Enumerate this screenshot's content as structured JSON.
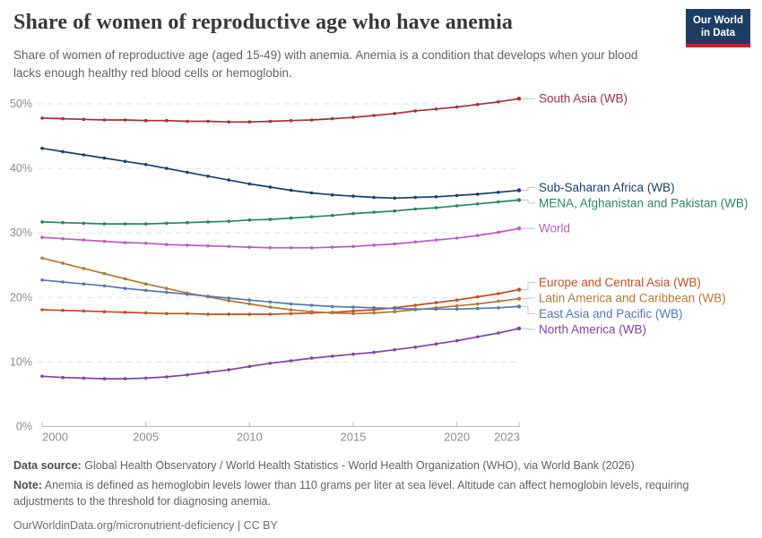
{
  "header": {
    "title": "Share of women of reproductive age who have anemia",
    "subtitle": "Share of women of reproductive age (aged 15-49) with anemia. Anemia is a condition that develops when your blood lacks enough healthy red blood cells or hemoglobin.",
    "logo_line1": "Our World",
    "logo_line2": "in Data",
    "logo_bg_color": "#1d3d63",
    "logo_stripe_color": "#b62b30"
  },
  "chart_data": {
    "type": "line",
    "x": [
      2000,
      2001,
      2002,
      2003,
      2004,
      2005,
      2006,
      2007,
      2008,
      2009,
      2010,
      2011,
      2012,
      2013,
      2014,
      2015,
      2016,
      2017,
      2018,
      2019,
      2020,
      2021,
      2022,
      2023
    ],
    "x_ticks": [
      2000,
      2005,
      2010,
      2015,
      2020,
      2023
    ],
    "y_ticks": [
      0,
      10,
      20,
      30,
      40,
      50
    ],
    "y_unit": "%",
    "ylim": [
      0,
      52
    ],
    "grid": "dashed-horizontal",
    "legend_position": "right-of-line-ends",
    "series": [
      {
        "name": "South Asia (WB)",
        "color": "#a0353b",
        "values": [
          47.8,
          47.7,
          47.6,
          47.5,
          47.5,
          47.4,
          47.4,
          47.3,
          47.3,
          47.2,
          47.2,
          47.3,
          47.4,
          47.5,
          47.7,
          47.9,
          48.2,
          48.5,
          48.9,
          49.2,
          49.5,
          49.9,
          50.3,
          50.8
        ]
      },
      {
        "name": "Sub-Saharan Africa (WB)",
        "color": "#1c3f68",
        "values": [
          43.1,
          42.6,
          42.1,
          41.6,
          41.1,
          40.6,
          40.0,
          39.4,
          38.8,
          38.2,
          37.6,
          37.1,
          36.6,
          36.2,
          35.9,
          35.7,
          35.5,
          35.4,
          35.5,
          35.6,
          35.8,
          36.0,
          36.3,
          36.6
        ]
      },
      {
        "name": "MENA, Afghanistan and Pakistan (WB)",
        "color": "#2c8465",
        "values": [
          31.7,
          31.6,
          31.5,
          31.4,
          31.4,
          31.4,
          31.5,
          31.6,
          31.7,
          31.8,
          32.0,
          32.1,
          32.3,
          32.5,
          32.7,
          33.0,
          33.2,
          33.4,
          33.7,
          33.9,
          34.2,
          34.5,
          34.8,
          35.1
        ]
      },
      {
        "name": "World",
        "color": "#b560bd",
        "values": [
          29.3,
          29.1,
          28.9,
          28.7,
          28.5,
          28.4,
          28.2,
          28.1,
          28.0,
          27.9,
          27.8,
          27.7,
          27.7,
          27.7,
          27.8,
          27.9,
          28.1,
          28.3,
          28.6,
          28.9,
          29.2,
          29.6,
          30.1,
          30.7
        ]
      },
      {
        "name": "Europe and Central Asia (WB)",
        "color": "#c44e27",
        "values": [
          18.1,
          18.0,
          17.9,
          17.8,
          17.7,
          17.6,
          17.5,
          17.5,
          17.4,
          17.4,
          17.4,
          17.4,
          17.5,
          17.6,
          17.7,
          17.9,
          18.1,
          18.4,
          18.8,
          19.2,
          19.6,
          20.1,
          20.6,
          21.2
        ]
      },
      {
        "name": "Latin America and Caribbean (WB)",
        "color": "#b0793b",
        "values": [
          26.1,
          25.3,
          24.5,
          23.7,
          22.9,
          22.1,
          21.4,
          20.7,
          20.1,
          19.5,
          19.0,
          18.5,
          18.1,
          17.8,
          17.6,
          17.5,
          17.6,
          17.8,
          18.1,
          18.4,
          18.7,
          19.0,
          19.4,
          19.8
        ]
      },
      {
        "name": "East Asia and Pacific (WB)",
        "color": "#5879a7",
        "values": [
          22.7,
          22.4,
          22.1,
          21.8,
          21.4,
          21.1,
          20.8,
          20.5,
          20.2,
          19.9,
          19.6,
          19.3,
          19.0,
          18.8,
          18.6,
          18.5,
          18.4,
          18.3,
          18.2,
          18.2,
          18.2,
          18.3,
          18.4,
          18.6
        ]
      },
      {
        "name": "North America (WB)",
        "color": "#7d46a4",
        "values": [
          7.8,
          7.6,
          7.5,
          7.4,
          7.4,
          7.5,
          7.7,
          8.0,
          8.4,
          8.8,
          9.3,
          9.8,
          10.2,
          10.6,
          10.9,
          11.2,
          11.5,
          11.9,
          12.3,
          12.8,
          13.3,
          13.9,
          14.5,
          15.2
        ]
      }
    ]
  },
  "footer": {
    "data_source_label": "Data source:",
    "data_source_text": "Global Health Observatory / World Health Statistics - World Health Organization (WHO), via World Bank (2026)",
    "note_label": "Note:",
    "note_text": "Anemia is defined as hemoglobin levels lower than 110 grams per liter at sea level. Altitude can affect hemoglobin levels, requiring adjustments to the threshold for diagnosing anemia.",
    "link": "OurWorldinData.org/micronutrient-deficiency | CC BY"
  }
}
